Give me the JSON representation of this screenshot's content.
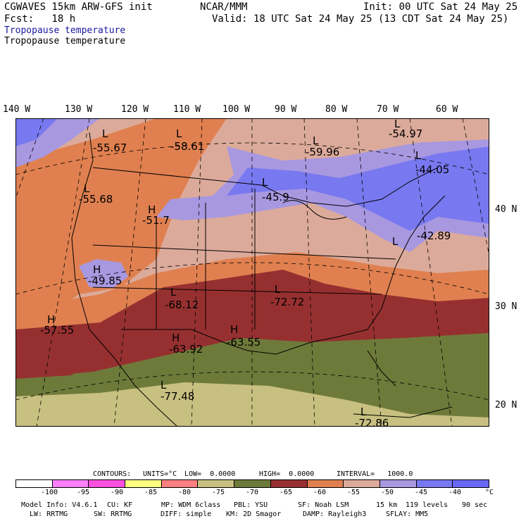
{
  "header": {
    "model": "CGWAVES 15km ARW-GFS init",
    "org": "NCAR/MMM",
    "init": "Init: 00 UTC Sat 24 May 25",
    "fcst": "Fcst:   18 h",
    "valid": "Valid: 18 UTC Sat 24 May 25 (13 CDT Sat 24 May 25)",
    "field_shaded": "Tropopause temperature",
    "field_title": "Tropopause temperature"
  },
  "axes": {
    "longitudes": [
      "140 W",
      "130 W",
      "120 W",
      "110 W",
      "100 W",
      "90 W",
      "80 W",
      "70 W",
      "60 W"
    ],
    "latitudes": [
      "40 N",
      "30 N",
      "20 N"
    ]
  },
  "extrema": [
    {
      "type": "L",
      "value": "-55.67",
      "name": "low-pacific-nw"
    },
    {
      "type": "L",
      "value": "-58.61",
      "name": "low-montana"
    },
    {
      "type": "L",
      "value": "-59.96",
      "name": "low-ontario"
    },
    {
      "type": "L",
      "value": "-54.97",
      "name": "low-quebec"
    },
    {
      "type": "L",
      "value": "-55.68",
      "name": "low-oregon"
    },
    {
      "type": "L",
      "value": "-45.9",
      "name": "low-minnesota"
    },
    {
      "type": "L",
      "value": "-44.05",
      "name": "low-maine"
    },
    {
      "type": "H",
      "value": "-51.7",
      "name": "high-wyoming"
    },
    {
      "type": "L",
      "value": "-42.89",
      "name": "low-new-york"
    },
    {
      "type": "H",
      "value": "-49.85",
      "name": "high-nevada"
    },
    {
      "type": "L",
      "value": "-68.12",
      "name": "low-texas-panhandle"
    },
    {
      "type": "L",
      "value": "-72.72",
      "name": "low-tennessee"
    },
    {
      "type": "H",
      "value": "-57.55",
      "name": "high-pacific-sw"
    },
    {
      "type": "H",
      "value": "-63.92",
      "name": "high-new-mexico"
    },
    {
      "type": "H",
      "value": "-63.55",
      "name": "high-texas"
    },
    {
      "type": "L",
      "value": "-77.48",
      "name": "low-mexico"
    },
    {
      "type": "L",
      "value": "-72.86",
      "name": "low-caribbean"
    }
  ],
  "contour_info": {
    "contours": "CONTOURS:",
    "units": "UNITS=°C",
    "low": "LOW=  0.0000",
    "high": "HIGH=  0.0000",
    "interval": "INTERVAL=   1000.0"
  },
  "colorbar": {
    "colors": [
      "#ffffff",
      "#ff80ff",
      "#ff50e0",
      "#ffff80",
      "#ff8080",
      "#c8c080",
      "#6e7a3a",
      "#963030",
      "#e08050",
      "#dcaa9a",
      "#a898e0",
      "#7878f0",
      "#6868f8"
    ],
    "tick_labels": [
      "-100",
      "-95",
      "-90",
      "-85",
      "-80",
      "-75",
      "-70",
      "-65",
      "-60",
      "-55",
      "-50",
      "-45",
      "-40",
      "°C"
    ]
  },
  "footer": {
    "line1": {
      "model_info": "Model Info: V4.6.1",
      "cu": "CU: KF",
      "mp": "MP: WDM 6class",
      "pbl": "PBL: YSU",
      "sf": "SF: Noah LSM",
      "res": "15 km",
      "levels": "119 levels",
      "dt": "90 sec"
    },
    "line2": {
      "lw": "LW: RRTMG",
      "sw": "SW: RRTMG",
      "diff": "DIFF: simple",
      "km": "KM: 2D Smagor",
      "damp": "DAMP: Rayleigh3",
      "sflay": "SFLAY: MM5"
    }
  }
}
